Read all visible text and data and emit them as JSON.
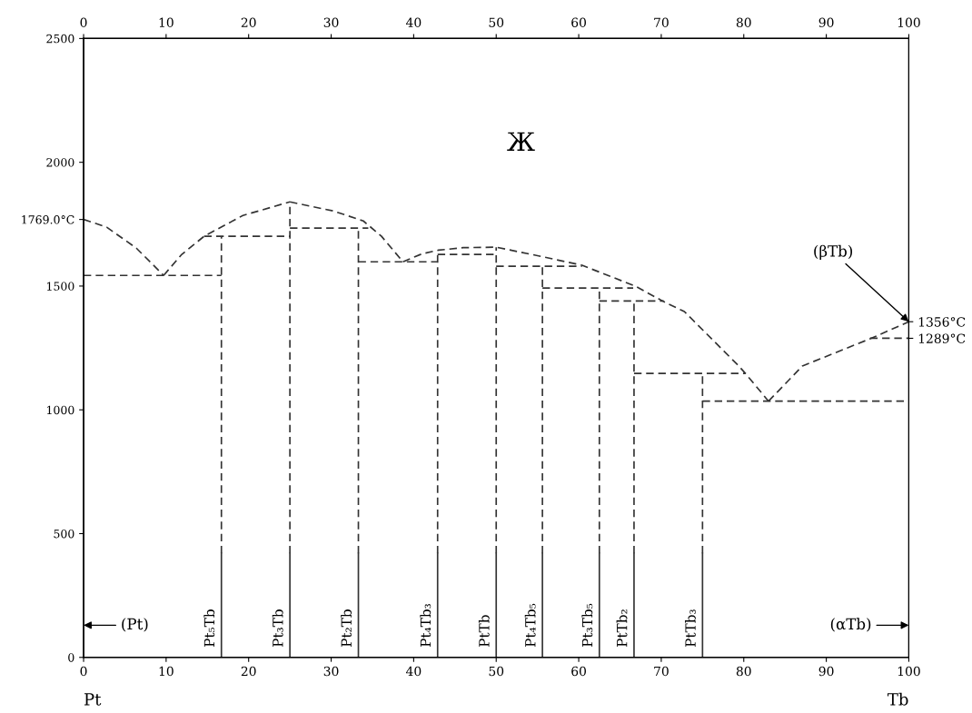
{
  "chart_data": {
    "type": "line",
    "line_style": "dashed",
    "marker": "none",
    "grid": false,
    "legend": false,
    "xlim": [
      0,
      100
    ],
    "xticks": [
      0,
      10,
      20,
      30,
      40,
      50,
      60,
      70,
      80,
      90,
      100
    ],
    "x2lim": [
      0,
      100
    ],
    "x2ticks": [
      0,
      10,
      20,
      30,
      40,
      50,
      60,
      70,
      80,
      90,
      100
    ],
    "ylim": [
      0,
      2500
    ],
    "yticks": [
      0,
      500,
      1000,
      1500,
      {
        "value": 1769,
        "label": "1769.0°C"
      },
      2000,
      2500
    ],
    "y2lim": [
      0,
      2500
    ],
    "y2ticks": [
      {
        "value": 1289,
        "label": "1289°C"
      },
      {
        "value": 1356,
        "label": "1356°C"
      }
    ],
    "annotations": [
      "Ж",
      "Pt",
      "Tb",
      "(Pt)",
      "(αTb)",
      {
        "text": "(βTb)",
        "x": 100,
        "y": 1356
      }
    ],
    "series": [
      {
        "color": "#333333",
        "x": [
          0,
          2.8,
          6.4,
          9.7
        ],
        "values": [
          1769,
          1738,
          1653,
          1543
        ]
      },
      {
        "color": "#333333",
        "x": [
          9.7,
          11.9,
          14.6,
          19.3,
          25
        ],
        "values": [
          1543,
          1628,
          1701,
          1785,
          1840
        ]
      },
      {
        "color": "#333333",
        "x": [
          25,
          30.3,
          33.9,
          36.1,
          38.7
        ],
        "values": [
          1840,
          1803,
          1763,
          1701,
          1598
        ]
      },
      {
        "color": "#333333",
        "x": [
          38.7,
          41,
          43,
          46,
          50,
          55.4,
          60.4,
          66.9,
          70.3,
          72.8,
          79.4,
          80.2,
          83
        ],
        "values": [
          1598,
          1630,
          1645,
          1655,
          1657,
          1620,
          1584,
          1499,
          1437,
          1397,
          1177,
          1147,
          1035
        ]
      },
      {
        "color": "#333333",
        "x": [
          83,
          87.1,
          95.3,
          100
        ],
        "values": [
          1035,
          1177,
          1287,
          1356
        ]
      },
      {
        "color": "#333333",
        "x": [
          0,
          16.7
        ],
        "values": [
          1543,
          1543
        ]
      },
      {
        "color": "#333333",
        "x": [
          14.6,
          25
        ],
        "values": [
          1701,
          1701
        ]
      },
      {
        "color": "#333333",
        "x": [
          25,
          34.5
        ],
        "values": [
          1734,
          1734
        ]
      },
      {
        "color": "#333333",
        "x": [
          33.3,
          42.9
        ],
        "values": [
          1598,
          1598
        ]
      },
      {
        "color": "#333333",
        "x": [
          42.9,
          50
        ],
        "values": [
          1628,
          1628
        ]
      },
      {
        "color": "#333333",
        "x": [
          50,
          60.4
        ],
        "values": [
          1580,
          1580
        ]
      },
      {
        "color": "#333333",
        "x": [
          55.6,
          66.6
        ],
        "values": [
          1492,
          1492
        ]
      },
      {
        "color": "#333333",
        "x": [
          62.5,
          70.3
        ],
        "values": [
          1440,
          1440
        ]
      },
      {
        "color": "#333333",
        "x": [
          66.7,
          80.2
        ],
        "values": [
          1147,
          1147
        ]
      },
      {
        "color": "#333333",
        "x": [
          75,
          100
        ],
        "values": [
          1035,
          1035
        ]
      },
      {
        "color": "#333333",
        "x": [
          95.3,
          100
        ],
        "values": [
          1289,
          1289
        ]
      },
      {
        "color": "#333333",
        "x": [
          16.7,
          16.7
        ],
        "values": [
          420,
          1701
        ]
      },
      {
        "color": "#333333",
        "x": [
          25,
          25
        ],
        "values": [
          420,
          1840
        ]
      },
      {
        "color": "#333333",
        "x": [
          33.3,
          33.3
        ],
        "values": [
          420,
          1734
        ]
      },
      {
        "color": "#333333",
        "x": [
          42.9,
          42.9
        ],
        "values": [
          420,
          1628
        ]
      },
      {
        "color": "#333333",
        "x": [
          50,
          50
        ],
        "values": [
          420,
          1657
        ]
      },
      {
        "color": "#333333",
        "x": [
          55.6,
          55.6
        ],
        "values": [
          420,
          1580
        ]
      },
      {
        "color": "#333333",
        "x": [
          62.5,
          62.5
        ],
        "values": [
          420,
          1492
        ]
      },
      {
        "color": "#333333",
        "x": [
          66.7,
          66.7
        ],
        "values": [
          420,
          1440
        ]
      },
      {
        "color": "#333333",
        "x": [
          75,
          75
        ],
        "values": [
          420,
          1147
        ]
      },
      {
        "name": "Pt₅Tb",
        "color": "#333333",
        "line_style": "solid",
        "x": [
          16.7,
          16.7
        ],
        "values": [
          0,
          420
        ]
      },
      {
        "name": "Pt₃Tb",
        "color": "#333333",
        "line_style": "solid",
        "x": [
          25,
          25
        ],
        "values": [
          0,
          420
        ]
      },
      {
        "name": "Pt₂Tb",
        "color": "#333333",
        "line_style": "solid",
        "x": [
          33.3,
          33.3
        ],
        "values": [
          0,
          420
        ]
      },
      {
        "name": "Pt₄Tb₃",
        "color": "#333333",
        "line_style": "solid",
        "x": [
          42.9,
          42.9
        ],
        "values": [
          0,
          420
        ]
      },
      {
        "name": "PtTb",
        "color": "#333333",
        "line_style": "solid",
        "x": [
          50,
          50
        ],
        "values": [
          0,
          420
        ]
      },
      {
        "name": "Pt₄Tb₅",
        "color": "#333333",
        "line_style": "solid",
        "x": [
          55.6,
          55.6
        ],
        "values": [
          0,
          420
        ]
      },
      {
        "name": "Pt₃Tb₅",
        "color": "#333333",
        "line_style": "solid",
        "x": [
          62.5,
          62.5
        ],
        "values": [
          0,
          420
        ]
      },
      {
        "name": "PtTb₂",
        "color": "#333333",
        "line_style": "solid",
        "x": [
          66.7,
          66.7
        ],
        "values": [
          0,
          420
        ]
      },
      {
        "name": "PtTb₃",
        "color": "#333333",
        "line_style": "solid",
        "x": [
          75,
          75
        ],
        "values": [
          0,
          420
        ]
      }
    ]
  }
}
